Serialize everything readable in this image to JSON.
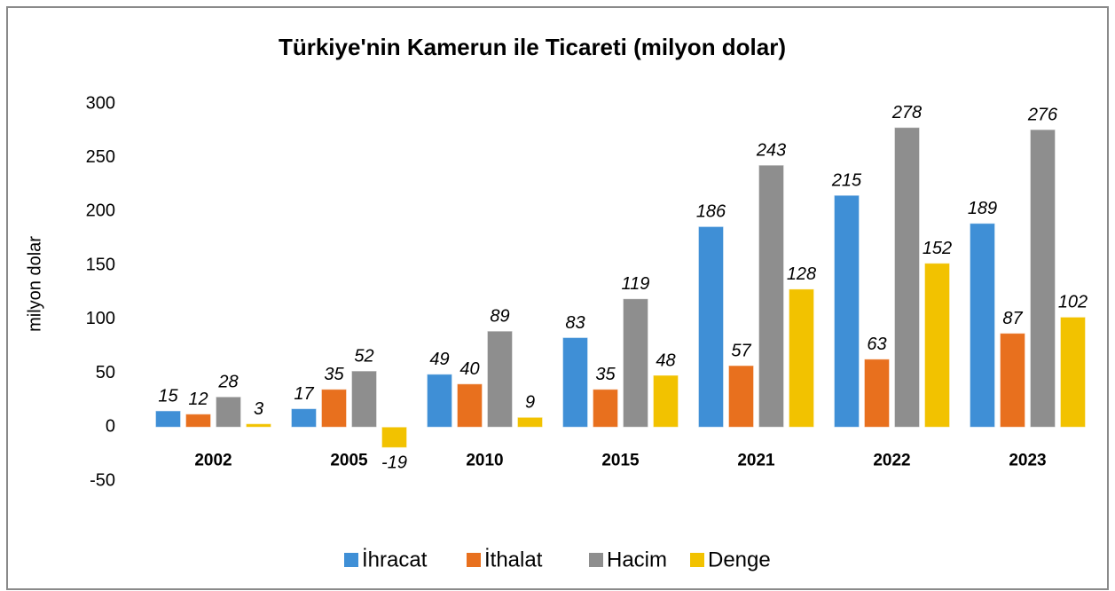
{
  "chart_data": {
    "type": "bar",
    "title": "Türkiye'nin Kamerun ile Ticareti (milyon dolar)",
    "y_label": "milyon dolar",
    "categories": [
      "2002",
      "2005",
      "2010",
      "2015",
      "2021",
      "2022",
      "2023"
    ],
    "series": [
      {
        "name": "İhracat",
        "color": "#3f8fd6",
        "values": [
          15,
          17,
          49,
          83,
          186,
          215,
          189
        ]
      },
      {
        "name": "İthalat",
        "color": "#e8701e",
        "values": [
          12,
          35,
          40,
          35,
          57,
          63,
          87
        ]
      },
      {
        "name": "Hacim",
        "color": "#8e8e8e",
        "values": [
          28,
          52,
          89,
          119,
          243,
          278,
          276
        ]
      },
      {
        "name": "Denge",
        "color": "#f2c200",
        "values": [
          3,
          -19,
          9,
          48,
          128,
          152,
          102
        ]
      }
    ],
    "ylim": [
      -50,
      300
    ],
    "yticks": [
      -50,
      0,
      50,
      100,
      150,
      200,
      250,
      300
    ],
    "grid": false,
    "legend": "bottom"
  }
}
